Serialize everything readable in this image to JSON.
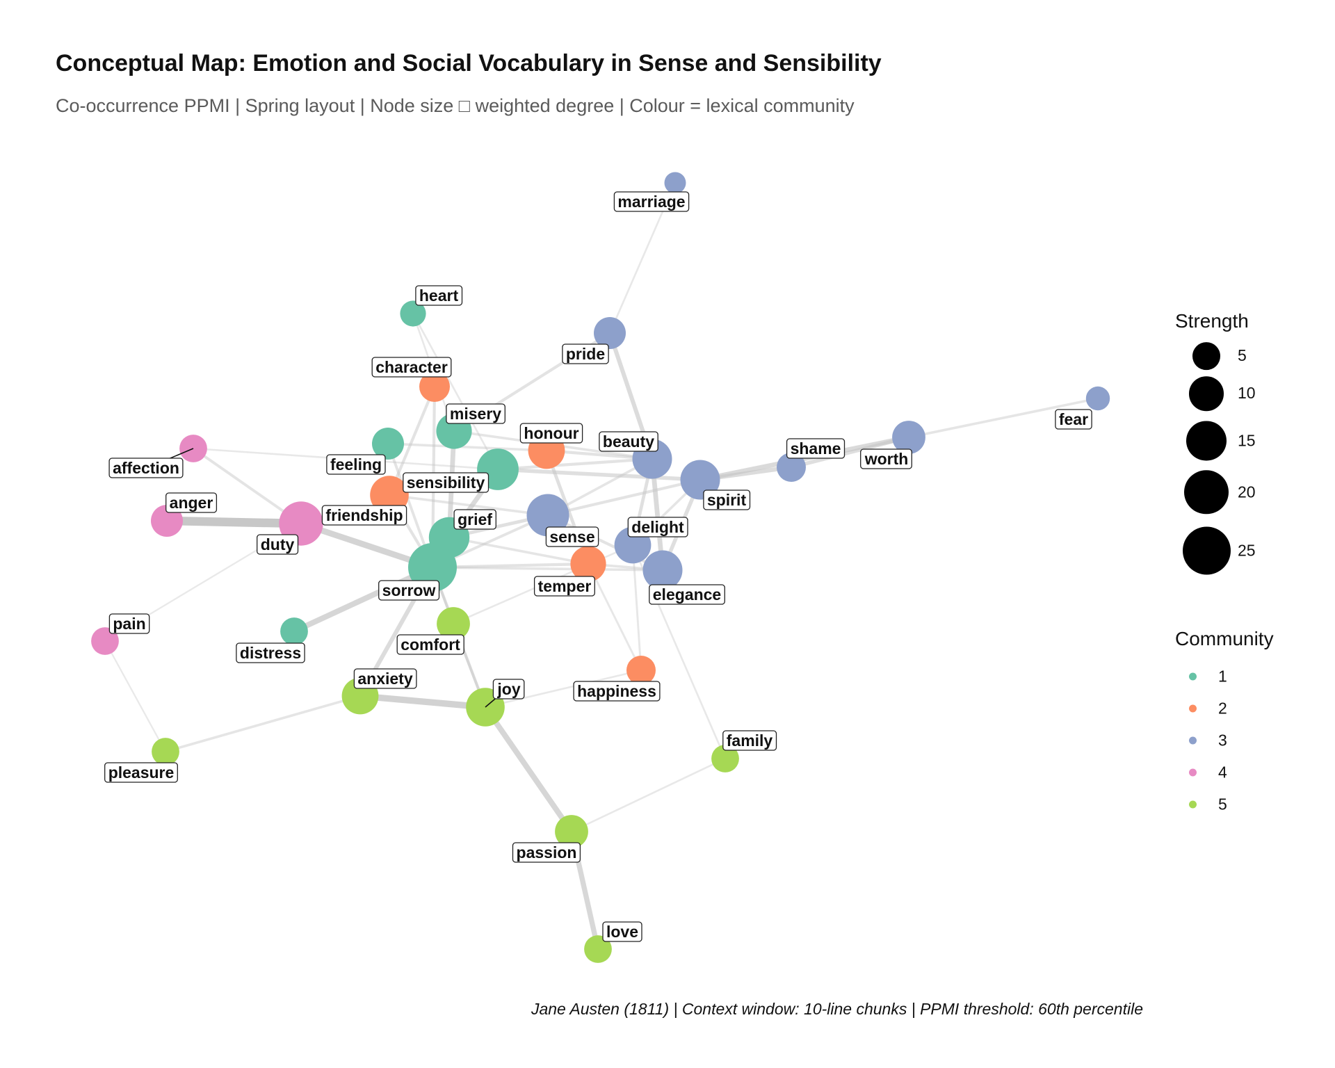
{
  "title": "Conceptual Map: Emotion and Social Vocabulary in Sense and Sensibility",
  "subtitle": "Co-occurrence PPMI | Spring layout | Node size □ weighted degree | Colour = lexical community",
  "caption": "Jane Austen (1811) | Context window: 10-line chunks | PPMI threshold: 60th percentile",
  "colors": {
    "1": "#66c2a5",
    "2": "#fc8d62",
    "3": "#8da0cb",
    "4": "#e78ac3",
    "5": "#a6d854",
    "edge": "#c4c4c4"
  },
  "legend": {
    "strength": {
      "title": "Strength",
      "items": [
        {
          "label": "5",
          "value": 5
        },
        {
          "label": "10",
          "value": 10
        },
        {
          "label": "15",
          "value": 15
        },
        {
          "label": "20",
          "value": 20
        },
        {
          "label": "25",
          "value": 25
        }
      ]
    },
    "community": {
      "title": "Community",
      "items": [
        "1",
        "2",
        "3",
        "4",
        "5"
      ]
    }
  },
  "graph": {
    "nodes": [
      {
        "id": "marriage",
        "community": 3,
        "strength": 2
      },
      {
        "id": "heart",
        "community": 1,
        "strength": 4
      },
      {
        "id": "pride",
        "community": 3,
        "strength": 8
      },
      {
        "id": "character",
        "community": 2,
        "strength": 7
      },
      {
        "id": "misery",
        "community": 1,
        "strength": 11
      },
      {
        "id": "honour",
        "community": 2,
        "strength": 12
      },
      {
        "id": "beauty",
        "community": 3,
        "strength": 15
      },
      {
        "id": "fear",
        "community": 3,
        "strength": 3
      },
      {
        "id": "shame",
        "community": 3,
        "strength": 6
      },
      {
        "id": "worth",
        "community": 3,
        "strength": 9
      },
      {
        "id": "affection",
        "community": 4,
        "strength": 5
      },
      {
        "id": "feeling",
        "community": 1,
        "strength": 8
      },
      {
        "id": "sensibility",
        "community": 1,
        "strength": 17
      },
      {
        "id": "spirit",
        "community": 3,
        "strength": 15
      },
      {
        "id": "anger",
        "community": 4,
        "strength": 8
      },
      {
        "id": "friendship",
        "community": 2,
        "strength": 14
      },
      {
        "id": "duty",
        "community": 4,
        "strength": 20
      },
      {
        "id": "grief",
        "community": 1,
        "strength": 16
      },
      {
        "id": "sense",
        "community": 3,
        "strength": 18
      },
      {
        "id": "delight",
        "community": 3,
        "strength": 12
      },
      {
        "id": "sorrow",
        "community": 1,
        "strength": 26
      },
      {
        "id": "temper",
        "community": 2,
        "strength": 11
      },
      {
        "id": "elegance",
        "community": 3,
        "strength": 15
      },
      {
        "id": "pain",
        "community": 4,
        "strength": 5
      },
      {
        "id": "distress",
        "community": 1,
        "strength": 5
      },
      {
        "id": "comfort",
        "community": 5,
        "strength": 9
      },
      {
        "id": "anxiety",
        "community": 5,
        "strength": 12
      },
      {
        "id": "joy",
        "community": 5,
        "strength": 14
      },
      {
        "id": "happiness",
        "community": 2,
        "strength": 6
      },
      {
        "id": "family",
        "community": 5,
        "strength": 5
      },
      {
        "id": "pleasure",
        "community": 5,
        "strength": 5
      },
      {
        "id": "passion",
        "community": 5,
        "strength": 9
      },
      {
        "id": "love",
        "community": 5,
        "strength": 5
      }
    ],
    "edges": [
      {
        "source": "duty",
        "target": "anger",
        "weight": 3.6
      },
      {
        "source": "duty",
        "target": "sorrow",
        "weight": 2.4
      },
      {
        "source": "anxiety",
        "target": "joy",
        "weight": 2.6
      },
      {
        "source": "joy",
        "target": "passion",
        "weight": 2.2
      },
      {
        "source": "passion",
        "target": "love",
        "weight": 2.0
      },
      {
        "source": "sorrow",
        "target": "distress",
        "weight": 2.2
      },
      {
        "source": "sorrow",
        "target": "anxiety",
        "weight": 1.6
      },
      {
        "source": "sorrow",
        "target": "grief",
        "weight": 1.8
      },
      {
        "source": "grief",
        "target": "sensibility",
        "weight": 1.8
      },
      {
        "source": "misery",
        "target": "grief",
        "weight": 1.8
      },
      {
        "source": "pride",
        "target": "beauty",
        "weight": 1.6
      },
      {
        "source": "beauty",
        "target": "elegance",
        "weight": 1.8
      },
      {
        "source": "beauty",
        "target": "delight",
        "weight": 1.2
      },
      {
        "source": "spirit",
        "target": "elegance",
        "weight": 1.4
      },
      {
        "source": "spirit",
        "target": "shame",
        "weight": 1.6
      },
      {
        "source": "spirit",
        "target": "worth",
        "weight": 1.8
      },
      {
        "source": "shame",
        "target": "worth",
        "weight": 1.4
      },
      {
        "source": "worth",
        "target": "fear",
        "weight": 0.8
      },
      {
        "source": "sensibility",
        "target": "spirit",
        "weight": 1.4
      },
      {
        "source": "sensibility",
        "target": "beauty",
        "weight": 1.0
      },
      {
        "source": "honour",
        "target": "temper",
        "weight": 1.2
      },
      {
        "source": "honour",
        "target": "beauty",
        "weight": 1.0
      },
      {
        "source": "sense",
        "target": "grief",
        "weight": 1.2
      },
      {
        "source": "sense",
        "target": "spirit",
        "weight": 1.0
      },
      {
        "source": "sense",
        "target": "elegance",
        "weight": 1.0
      },
      {
        "source": "sorrow",
        "target": "temper",
        "weight": 1.0
      },
      {
        "source": "sorrow",
        "target": "elegance",
        "weight": 0.8
      },
      {
        "source": "sorrow",
        "target": "sense",
        "weight": 0.9
      },
      {
        "source": "friendship",
        "target": "character",
        "weight": 1.0
      },
      {
        "source": "friendship",
        "target": "sensibility",
        "weight": 1.0
      },
      {
        "source": "friendship",
        "target": "sorrow",
        "weight": 1.0
      },
      {
        "source": "friendship",
        "target": "sense",
        "weight": 0.8
      },
      {
        "source": "misery",
        "target": "pride",
        "weight": 1.0
      },
      {
        "source": "misery",
        "target": "beauty",
        "weight": 0.8
      },
      {
        "source": "character",
        "target": "sorrow",
        "weight": 1.0
      },
      {
        "source": "feeling",
        "target": "sorrow",
        "weight": 0.9
      },
      {
        "source": "feeling",
        "target": "honour",
        "weight": 0.8
      },
      {
        "source": "affection",
        "target": "duty",
        "weight": 0.9
      },
      {
        "source": "affection",
        "target": "sensibility",
        "weight": 0.5
      },
      {
        "source": "heart",
        "target": "misery",
        "weight": 0.5
      },
      {
        "source": "heart",
        "target": "sensibility",
        "weight": 0.5
      },
      {
        "source": "marriage",
        "target": "pride",
        "weight": 0.5
      },
      {
        "source": "pleasure",
        "target": "anxiety",
        "weight": 0.8
      },
      {
        "source": "pleasure",
        "target": "pain",
        "weight": 0.4
      },
      {
        "source": "pain",
        "target": "duty",
        "weight": 0.4
      },
      {
        "source": "comfort",
        "target": "sorrow",
        "weight": 0.8
      },
      {
        "source": "comfort",
        "target": "delight",
        "weight": 0.5
      },
      {
        "source": "comfort",
        "target": "joy",
        "weight": 0.8
      },
      {
        "source": "joy",
        "target": "sorrow",
        "weight": 1.0
      },
      {
        "source": "joy",
        "target": "happiness",
        "weight": 0.5
      },
      {
        "source": "happiness",
        "target": "temper",
        "weight": 0.6
      },
      {
        "source": "happiness",
        "target": "delight",
        "weight": 0.6
      },
      {
        "source": "family",
        "target": "passion",
        "weight": 0.5
      },
      {
        "source": "family",
        "target": "delight",
        "weight": 0.5
      },
      {
        "source": "delight",
        "target": "spirit",
        "weight": 0.8
      },
      {
        "source": "sense",
        "target": "beauty",
        "weight": 0.8
      },
      {
        "source": "temper",
        "target": "elegance",
        "weight": 0.8
      },
      {
        "source": "grief",
        "target": "temper",
        "weight": 0.8
      }
    ]
  }
}
